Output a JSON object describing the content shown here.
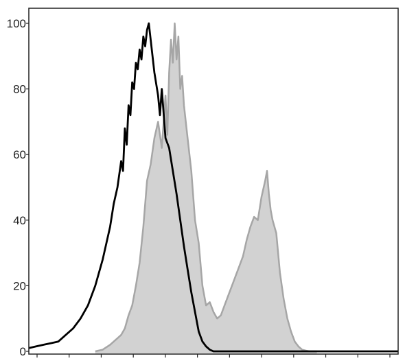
{
  "chart_data": {
    "type": "area",
    "title": "",
    "xlabel": "",
    "ylabel": "",
    "grid": false,
    "legend": "none",
    "x_scale": "log",
    "x_tick_labels_shown": false,
    "ylim": [
      0,
      100
    ],
    "y_ticks": [
      "0",
      "20",
      "40",
      "60",
      "80",
      "100"
    ],
    "y_tick_values": [
      0,
      20,
      40,
      60,
      80,
      100
    ],
    "x_ticks_count": 12,
    "xlim": [
      0,
      100
    ],
    "series": [
      {
        "style": "filled",
        "fill": "#d2d2d2",
        "stroke": "#a6a6a6",
        "x": [
          18,
          20,
          22,
          24,
          25,
          26,
          27,
          28,
          29,
          30,
          31,
          32,
          33,
          34,
          35,
          36,
          37,
          37.5,
          38,
          38.5,
          39,
          39.5,
          40,
          40.5,
          41,
          41.5,
          42,
          43,
          44,
          45,
          46,
          47,
          48,
          49,
          50,
          51,
          52,
          53,
          54,
          55,
          56,
          57,
          58,
          59,
          60,
          61,
          62,
          63,
          64,
          64.5,
          65,
          65.5,
          66,
          67,
          68,
          69,
          70,
          71,
          72,
          73,
          74,
          75,
          76,
          77,
          78
        ],
        "values": [
          0,
          0.5,
          2,
          4,
          5,
          7,
          11,
          14,
          20,
          27,
          38,
          52,
          57,
          65,
          70,
          62,
          78,
          66,
          85,
          95,
          88,
          100,
          89,
          96,
          80,
          84,
          75,
          65,
          55,
          40,
          33,
          20,
          14,
          15,
          12,
          10,
          11,
          14,
          17,
          20,
          23,
          26,
          29,
          34,
          38,
          41,
          40,
          47,
          52,
          55,
          48,
          43,
          40,
          36,
          24,
          16,
          10,
          6,
          3,
          1.5,
          0.5,
          0.2,
          0,
          0,
          0
        ]
      },
      {
        "style": "line",
        "stroke": "#000000",
        "x": [
          0,
          2,
          4,
          6,
          8,
          10,
          12,
          14,
          16,
          18,
          20,
          22,
          23,
          24,
          25,
          25.5,
          26,
          26.5,
          27,
          27.5,
          28,
          28.5,
          29,
          29.5,
          30,
          30.5,
          31,
          31.5,
          32,
          32.5,
          33,
          33.5,
          34,
          35,
          35.5,
          36,
          37,
          38,
          39,
          40,
          41,
          42,
          43,
          44,
          45,
          46,
          47,
          48,
          49,
          50,
          52,
          55,
          60,
          70,
          100
        ],
        "values": [
          1,
          1.5,
          2,
          2.5,
          3,
          5,
          7,
          10,
          14,
          20,
          28,
          38,
          45,
          50,
          58,
          55,
          68,
          63,
          75,
          72,
          82,
          80,
          88,
          86,
          92,
          89,
          96,
          93,
          98,
          100,
          95,
          90,
          85,
          78,
          72,
          80,
          65,
          62,
          55,
          48,
          40,
          32,
          25,
          18,
          12,
          6,
          3,
          1.5,
          0.5,
          0,
          0,
          0,
          0,
          0,
          0
        ]
      }
    ]
  }
}
